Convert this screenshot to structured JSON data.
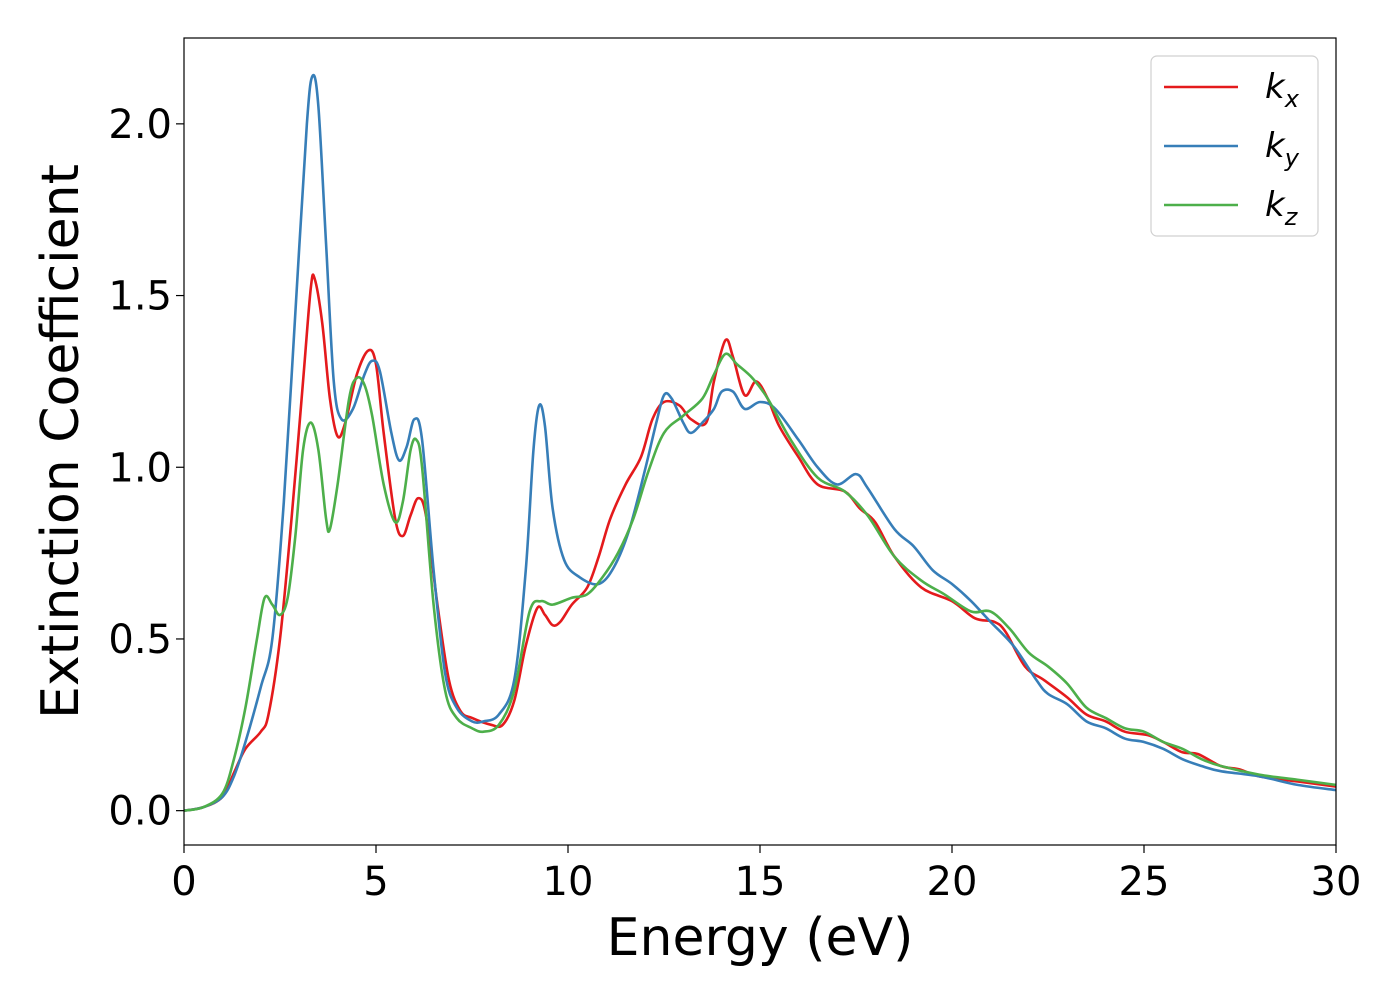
{
  "chart_data": {
    "type": "line",
    "xlabel": "Energy (eV)",
    "ylabel": "Extinction Coefficient",
    "xlim": [
      0,
      30
    ],
    "ylim": [
      -0.1,
      2.25
    ],
    "xticks": [
      0,
      5,
      10,
      15,
      20,
      25,
      30
    ],
    "xtick_labels": [
      "0",
      "5",
      "10",
      "15",
      "20",
      "25",
      "30"
    ],
    "yticks": [
      0.0,
      0.5,
      1.0,
      1.5,
      2.0
    ],
    "ytick_labels": [
      "0.0",
      "0.5",
      "1.0",
      "1.5",
      "2.0"
    ],
    "grid": false,
    "legend_position": "top-right",
    "series": [
      {
        "name": "k_x",
        "legend_base": "k",
        "legend_sub": "x",
        "color": "#e41a1c",
        "points": [
          [
            0,
            0
          ],
          [
            0.5,
            0.01
          ],
          [
            1.0,
            0.04
          ],
          [
            1.3,
            0.11
          ],
          [
            1.6,
            0.18
          ],
          [
            2.0,
            0.23
          ],
          [
            2.2,
            0.28
          ],
          [
            2.5,
            0.5
          ],
          [
            2.8,
            0.85
          ],
          [
            3.1,
            1.25
          ],
          [
            3.3,
            1.52
          ],
          [
            3.4,
            1.55
          ],
          [
            3.6,
            1.42
          ],
          [
            3.8,
            1.2
          ],
          [
            4.0,
            1.09
          ],
          [
            4.2,
            1.13
          ],
          [
            4.5,
            1.27
          ],
          [
            4.8,
            1.34
          ],
          [
            5.0,
            1.3
          ],
          [
            5.2,
            1.1
          ],
          [
            5.5,
            0.85
          ],
          [
            5.7,
            0.8
          ],
          [
            5.9,
            0.86
          ],
          [
            6.1,
            0.91
          ],
          [
            6.3,
            0.86
          ],
          [
            6.6,
            0.6
          ],
          [
            6.9,
            0.38
          ],
          [
            7.2,
            0.29
          ],
          [
            7.5,
            0.27
          ],
          [
            8.0,
            0.25
          ],
          [
            8.3,
            0.25
          ],
          [
            8.6,
            0.32
          ],
          [
            8.9,
            0.48
          ],
          [
            9.2,
            0.59
          ],
          [
            9.4,
            0.57
          ],
          [
            9.6,
            0.54
          ],
          [
            9.8,
            0.55
          ],
          [
            10.1,
            0.6
          ],
          [
            10.5,
            0.65
          ],
          [
            10.8,
            0.74
          ],
          [
            11.1,
            0.85
          ],
          [
            11.5,
            0.95
          ],
          [
            11.9,
            1.03
          ],
          [
            12.2,
            1.14
          ],
          [
            12.5,
            1.19
          ],
          [
            12.9,
            1.18
          ],
          [
            13.2,
            1.14
          ],
          [
            13.6,
            1.13
          ],
          [
            13.8,
            1.25
          ],
          [
            14.1,
            1.37
          ],
          [
            14.3,
            1.32
          ],
          [
            14.6,
            1.21
          ],
          [
            14.9,
            1.25
          ],
          [
            15.2,
            1.2
          ],
          [
            15.5,
            1.12
          ],
          [
            16.0,
            1.03
          ],
          [
            16.5,
            0.95
          ],
          [
            17.2,
            0.93
          ],
          [
            17.6,
            0.88
          ],
          [
            18.0,
            0.84
          ],
          [
            18.5,
            0.74
          ],
          [
            19.2,
            0.65
          ],
          [
            20.0,
            0.61
          ],
          [
            20.6,
            0.56
          ],
          [
            21.1,
            0.55
          ],
          [
            21.4,
            0.52
          ],
          [
            21.9,
            0.42
          ],
          [
            22.4,
            0.38
          ],
          [
            23.0,
            0.33
          ],
          [
            23.5,
            0.28
          ],
          [
            24.0,
            0.26
          ],
          [
            24.5,
            0.23
          ],
          [
            25.1,
            0.22
          ],
          [
            25.5,
            0.2
          ],
          [
            26.0,
            0.17
          ],
          [
            26.4,
            0.165
          ],
          [
            27.0,
            0.13
          ],
          [
            27.5,
            0.12
          ],
          [
            28.0,
            0.1
          ],
          [
            29.0,
            0.085
          ],
          [
            30.0,
            0.07
          ]
        ]
      },
      {
        "name": "k_y",
        "legend_base": "k",
        "legend_sub": "y",
        "color": "#377eb8",
        "points": [
          [
            0,
            0
          ],
          [
            0.5,
            0.01
          ],
          [
            1.0,
            0.04
          ],
          [
            1.3,
            0.1
          ],
          [
            1.6,
            0.2
          ],
          [
            2.0,
            0.36
          ],
          [
            2.3,
            0.5
          ],
          [
            2.6,
            0.9
          ],
          [
            2.9,
            1.45
          ],
          [
            3.2,
            2.0
          ],
          [
            3.35,
            2.14
          ],
          [
            3.5,
            2.05
          ],
          [
            3.7,
            1.65
          ],
          [
            3.9,
            1.25
          ],
          [
            4.1,
            1.14
          ],
          [
            4.4,
            1.17
          ],
          [
            4.7,
            1.27
          ],
          [
            4.9,
            1.31
          ],
          [
            5.1,
            1.28
          ],
          [
            5.4,
            1.1
          ],
          [
            5.6,
            1.02
          ],
          [
            5.8,
            1.06
          ],
          [
            6.0,
            1.14
          ],
          [
            6.2,
            1.08
          ],
          [
            6.5,
            0.7
          ],
          [
            6.8,
            0.4
          ],
          [
            7.1,
            0.3
          ],
          [
            7.5,
            0.26
          ],
          [
            7.8,
            0.26
          ],
          [
            8.2,
            0.28
          ],
          [
            8.6,
            0.38
          ],
          [
            8.9,
            0.7
          ],
          [
            9.1,
            1.05
          ],
          [
            9.25,
            1.18
          ],
          [
            9.4,
            1.12
          ],
          [
            9.6,
            0.88
          ],
          [
            9.9,
            0.73
          ],
          [
            10.3,
            0.68
          ],
          [
            10.8,
            0.66
          ],
          [
            11.2,
            0.71
          ],
          [
            11.6,
            0.82
          ],
          [
            12.0,
            0.99
          ],
          [
            12.3,
            1.13
          ],
          [
            12.5,
            1.21
          ],
          [
            12.7,
            1.2
          ],
          [
            13.0,
            1.13
          ],
          [
            13.2,
            1.1
          ],
          [
            13.5,
            1.13
          ],
          [
            13.8,
            1.17
          ],
          [
            14.0,
            1.22
          ],
          [
            14.3,
            1.22
          ],
          [
            14.6,
            1.17
          ],
          [
            15.0,
            1.19
          ],
          [
            15.4,
            1.17
          ],
          [
            16.0,
            1.08
          ],
          [
            16.5,
            1.0
          ],
          [
            17.0,
            0.95
          ],
          [
            17.5,
            0.98
          ],
          [
            17.8,
            0.94
          ],
          [
            18.5,
            0.82
          ],
          [
            19.0,
            0.77
          ],
          [
            19.5,
            0.7
          ],
          [
            20.0,
            0.66
          ],
          [
            20.5,
            0.61
          ],
          [
            21.0,
            0.55
          ],
          [
            21.6,
            0.48
          ],
          [
            22.2,
            0.38
          ],
          [
            22.5,
            0.34
          ],
          [
            23.0,
            0.31
          ],
          [
            23.5,
            0.26
          ],
          [
            24.0,
            0.24
          ],
          [
            24.5,
            0.21
          ],
          [
            25.0,
            0.2
          ],
          [
            25.5,
            0.18
          ],
          [
            26.0,
            0.15
          ],
          [
            26.5,
            0.13
          ],
          [
            27.0,
            0.115
          ],
          [
            28.0,
            0.1
          ],
          [
            29.0,
            0.075
          ],
          [
            30.0,
            0.06
          ]
        ]
      },
      {
        "name": "k_z",
        "legend_base": "k",
        "legend_sub": "z",
        "color": "#4daf4a",
        "points": [
          [
            0,
            0
          ],
          [
            0.5,
            0.01
          ],
          [
            1.0,
            0.05
          ],
          [
            1.3,
            0.15
          ],
          [
            1.6,
            0.3
          ],
          [
            1.9,
            0.5
          ],
          [
            2.1,
            0.62
          ],
          [
            2.3,
            0.6
          ],
          [
            2.5,
            0.57
          ],
          [
            2.7,
            0.62
          ],
          [
            2.9,
            0.8
          ],
          [
            3.1,
            1.05
          ],
          [
            3.3,
            1.13
          ],
          [
            3.5,
            1.05
          ],
          [
            3.7,
            0.85
          ],
          [
            3.8,
            0.82
          ],
          [
            4.0,
            0.95
          ],
          [
            4.3,
            1.2
          ],
          [
            4.5,
            1.26
          ],
          [
            4.7,
            1.24
          ],
          [
            4.9,
            1.15
          ],
          [
            5.2,
            0.95
          ],
          [
            5.5,
            0.84
          ],
          [
            5.7,
            0.9
          ],
          [
            5.9,
            1.05
          ],
          [
            6.05,
            1.08
          ],
          [
            6.2,
            1.0
          ],
          [
            6.5,
            0.6
          ],
          [
            6.8,
            0.35
          ],
          [
            7.1,
            0.27
          ],
          [
            7.5,
            0.24
          ],
          [
            7.8,
            0.23
          ],
          [
            8.2,
            0.25
          ],
          [
            8.6,
            0.35
          ],
          [
            9.0,
            0.58
          ],
          [
            9.3,
            0.61
          ],
          [
            9.6,
            0.6
          ],
          [
            10.1,
            0.62
          ],
          [
            10.5,
            0.63
          ],
          [
            10.9,
            0.68
          ],
          [
            11.3,
            0.75
          ],
          [
            11.7,
            0.85
          ],
          [
            12.1,
            0.99
          ],
          [
            12.5,
            1.1
          ],
          [
            13.0,
            1.15
          ],
          [
            13.5,
            1.2
          ],
          [
            13.8,
            1.27
          ],
          [
            14.1,
            1.33
          ],
          [
            14.4,
            1.3
          ],
          [
            14.8,
            1.26
          ],
          [
            15.2,
            1.2
          ],
          [
            15.8,
            1.08
          ],
          [
            16.5,
            0.97
          ],
          [
            17.2,
            0.93
          ],
          [
            17.8,
            0.86
          ],
          [
            18.5,
            0.74
          ],
          [
            19.2,
            0.67
          ],
          [
            19.8,
            0.63
          ],
          [
            20.5,
            0.58
          ],
          [
            21.0,
            0.58
          ],
          [
            21.5,
            0.53
          ],
          [
            22.0,
            0.46
          ],
          [
            22.5,
            0.42
          ],
          [
            23.0,
            0.37
          ],
          [
            23.5,
            0.3
          ],
          [
            24.0,
            0.27
          ],
          [
            24.5,
            0.24
          ],
          [
            25.0,
            0.23
          ],
          [
            25.5,
            0.2
          ],
          [
            26.0,
            0.18
          ],
          [
            26.5,
            0.15
          ],
          [
            27.0,
            0.13
          ],
          [
            28.0,
            0.105
          ],
          [
            29.0,
            0.09
          ],
          [
            30.0,
            0.075
          ]
        ]
      }
    ]
  }
}
